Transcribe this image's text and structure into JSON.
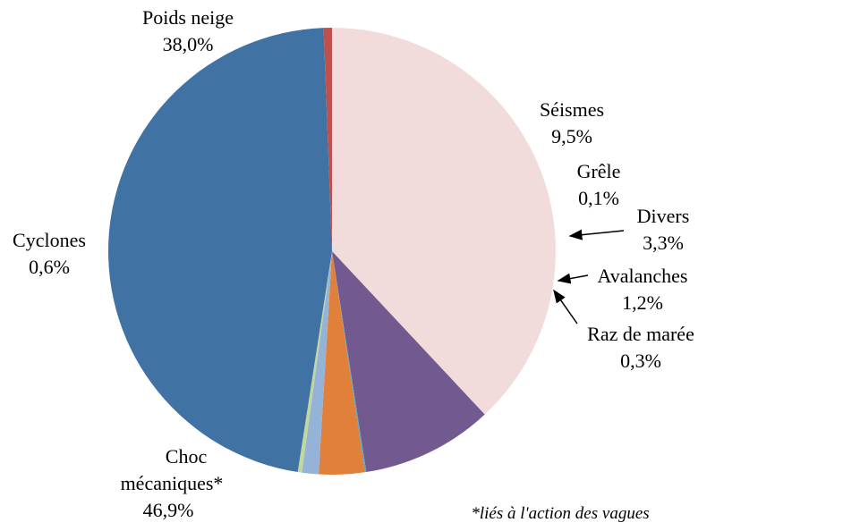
{
  "chart_data": {
    "type": "pie",
    "start_angle_deg": 90,
    "slices": [
      {
        "label": "Poids neige",
        "value": 38.0,
        "value_text": "38,0%",
        "color": "#f2dcdb"
      },
      {
        "label": "Séismes",
        "value": 9.5,
        "value_text": "9,5%",
        "color": "#725990"
      },
      {
        "label": "Grêle",
        "value": 0.1,
        "value_text": "0,1%",
        "color": "#4bacc6"
      },
      {
        "label": "Divers",
        "value": 3.3,
        "value_text": "3,3%",
        "color": "#e0803a"
      },
      {
        "label": "Avalanches",
        "value": 1.2,
        "value_text": "1,2%",
        "color": "#95b3d7"
      },
      {
        "label": "Raz de marée",
        "value": 0.3,
        "value_text": "0,3%",
        "color": "#c3d69b"
      },
      {
        "label_lines": [
          "Choc",
          "mécaniques*"
        ],
        "value": 46.9,
        "value_text": "46,9%",
        "color": "#4172a4"
      },
      {
        "label": "Cyclones",
        "value": 0.6,
        "value_text": "0,6%",
        "color": "#c0504d"
      }
    ],
    "footnote": "*liés à l'action des vagues"
  }
}
